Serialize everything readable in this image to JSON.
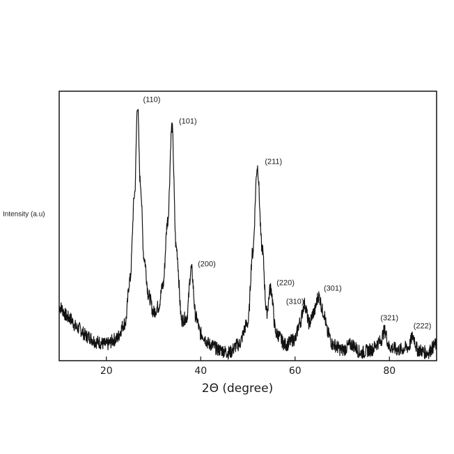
{
  "chart_data": {
    "type": "line",
    "title": "",
    "xlabel": "2Θ (degree)",
    "ylabel": "Intensity (a.u)",
    "xlim": [
      10,
      90
    ],
    "ylim": [
      0,
      100
    ],
    "xticks": [
      20,
      40,
      60,
      80
    ],
    "yticks_shown": false,
    "grid": false,
    "legend": null,
    "line_color": "#111111",
    "series": [
      {
        "x": [
          10,
          12,
          14,
          16,
          18,
          20,
          22,
          24,
          25,
          26,
          26.6,
          27.2,
          28,
          29,
          30,
          31,
          32,
          33,
          33.9,
          34.8,
          36,
          37,
          38,
          39,
          40,
          42,
          44,
          46,
          48,
          50,
          51,
          52,
          53,
          54,
          54.8,
          56,
          58,
          60,
          61,
          62,
          63,
          64,
          65,
          66,
          67,
          68,
          70,
          72,
          74,
          76,
          78,
          79,
          80,
          82,
          84,
          85,
          86,
          88,
          90
        ],
        "y": [
          20,
          16,
          12,
          9,
          7,
          6,
          8,
          14,
          30,
          62,
          95,
          66,
          38,
          24,
          18,
          20,
          28,
          52,
          87,
          42,
          15,
          16,
          34,
          16,
          10,
          6,
          4,
          3,
          6,
          14,
          40,
          72,
          42,
          18,
          27,
          10,
          6,
          8,
          14,
          21,
          14,
          18,
          24,
          18,
          10,
          6,
          4,
          6,
          3,
          4,
          7,
          11,
          5,
          4,
          5,
          9,
          4,
          3,
          6
        ]
      }
    ],
    "annotations": [
      {
        "text": "(110)",
        "x": 27.2,
        "y": 95
      },
      {
        "text": "(101)",
        "x": 34.8,
        "y": 87
      },
      {
        "text": "(200)",
        "x": 38.8,
        "y": 34
      },
      {
        "text": "(211)",
        "x": 53.0,
        "y": 72
      },
      {
        "text": "(220)",
        "x": 55.5,
        "y": 27
      },
      {
        "text": "(310)",
        "x": 57.5,
        "y": 20
      },
      {
        "text": "(301)",
        "x": 65.5,
        "y": 25
      },
      {
        "text": "(321)",
        "x": 77.5,
        "y": 14
      },
      {
        "text": "(222)",
        "x": 84.5,
        "y": 11
      }
    ]
  }
}
